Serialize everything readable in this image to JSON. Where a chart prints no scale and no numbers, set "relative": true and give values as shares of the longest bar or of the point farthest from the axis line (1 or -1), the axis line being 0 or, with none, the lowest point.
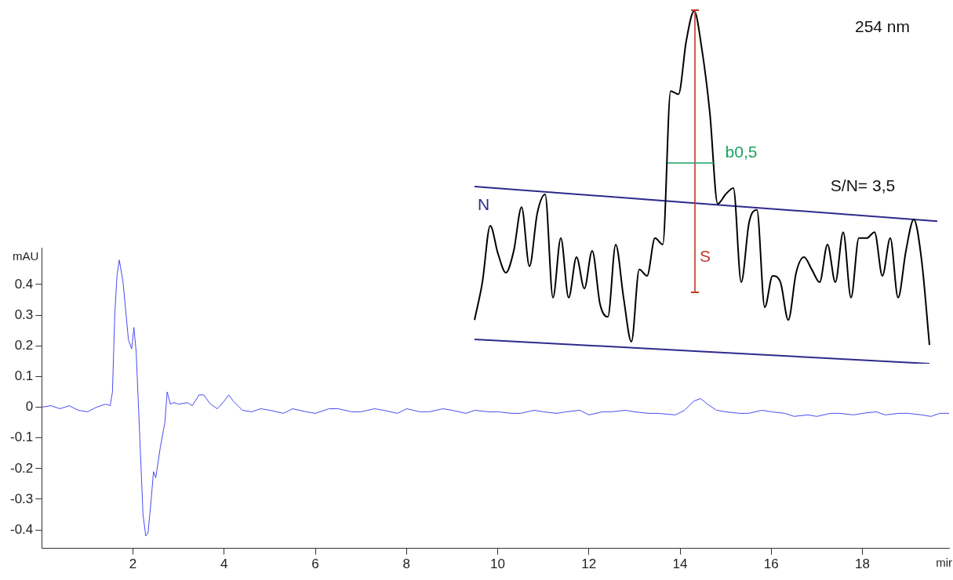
{
  "chart_data": [
    {
      "type": "line",
      "xlabel": "mir",
      "ylabel": "mAU",
      "xlim": [
        0,
        19.9
      ],
      "ylim": [
        -0.46,
        0.52
      ],
      "xticks": [
        2,
        4,
        6,
        8,
        10,
        12,
        14,
        16,
        18
      ],
      "yticks": [
        -0.4,
        -0.3,
        -0.2,
        -0.1,
        0,
        0.1,
        0.2,
        0.3,
        0.4
      ],
      "series": [
        {
          "color": "#4a4af0",
          "x": [
            0,
            0.2,
            0.4,
            0.6,
            0.8,
            1.0,
            1.2,
            1.4,
            1.5,
            1.55,
            1.6,
            1.65,
            1.7,
            1.78,
            1.85,
            1.9,
            1.97,
            2.02,
            2.07,
            2.15,
            2.22,
            2.28,
            2.33,
            2.4,
            2.45,
            2.5,
            2.6,
            2.7,
            2.75,
            2.82,
            2.9,
            3.0,
            3.2,
            3.3,
            3.45,
            3.55,
            3.7,
            3.85,
            4.0,
            4.1,
            4.2,
            4.4,
            4.6,
            4.8,
            5.0,
            5.3,
            5.5,
            5.8,
            6.0,
            6.3,
            6.5,
            6.8,
            7.0,
            7.3,
            7.5,
            7.8,
            8.0,
            8.3,
            8.5,
            8.8,
            9.0,
            9.3,
            9.5,
            9.8,
            10.0,
            10.3,
            10.5,
            10.8,
            11.0,
            11.3,
            11.5,
            11.8,
            12.0,
            12.3,
            12.5,
            12.8,
            13.0,
            13.3,
            13.5,
            13.9,
            14.1,
            14.3,
            14.45,
            14.6,
            14.8,
            15.0,
            15.3,
            15.5,
            15.8,
            16.0,
            16.3,
            16.5,
            16.8,
            17.0,
            17.3,
            17.5,
            17.8,
            18.0,
            18.3,
            18.5,
            18.8,
            19.0,
            19.3,
            19.5,
            19.7,
            19.9
          ],
          "values": [
            0,
            0.005,
            -0.005,
            0.005,
            -0.01,
            -0.015,
            0.0,
            0.01,
            0.005,
            0.05,
            0.3,
            0.43,
            0.48,
            0.41,
            0.3,
            0.22,
            0.19,
            0.26,
            0.18,
            -0.1,
            -0.35,
            -0.42,
            -0.41,
            -0.3,
            -0.21,
            -0.23,
            -0.13,
            -0.05,
            0.05,
            0.01,
            0.015,
            0.01,
            0.015,
            0.005,
            0.04,
            0.04,
            0.01,
            -0.005,
            0.02,
            0.04,
            0.02,
            -0.01,
            -0.015,
            -0.005,
            -0.01,
            -0.02,
            -0.005,
            -0.015,
            -0.02,
            -0.005,
            -0.005,
            -0.015,
            -0.015,
            -0.005,
            -0.01,
            -0.02,
            -0.005,
            -0.015,
            -0.015,
            -0.005,
            -0.01,
            -0.02,
            -0.01,
            -0.015,
            -0.015,
            -0.02,
            -0.02,
            -0.01,
            -0.015,
            -0.02,
            -0.015,
            -0.01,
            -0.025,
            -0.015,
            -0.015,
            -0.01,
            -0.015,
            -0.02,
            -0.02,
            -0.025,
            -0.01,
            0.02,
            0.028,
            0.01,
            -0.01,
            -0.015,
            -0.02,
            -0.02,
            -0.01,
            -0.015,
            -0.02,
            -0.03,
            -0.025,
            -0.03,
            -0.02,
            -0.02,
            -0.025,
            -0.02,
            -0.015,
            -0.025,
            -0.02,
            -0.02,
            -0.025,
            -0.03,
            -0.02,
            -0.02
          ]
        }
      ]
    },
    {
      "type": "line",
      "relative": true,
      "tick_labels": false,
      "categories": [
        null,
        null,
        null,
        null,
        null,
        null,
        null,
        null,
        null,
        null,
        null,
        null,
        null,
        null,
        null,
        null,
        null,
        null,
        null,
        null,
        null,
        null,
        null,
        null,
        null,
        null,
        null,
        null,
        null,
        null,
        null,
        null,
        null,
        null,
        null,
        null,
        null,
        null,
        null,
        null,
        null,
        null,
        null,
        null,
        null,
        null,
        null,
        null,
        null,
        null,
        null,
        null,
        null,
        null,
        null,
        null,
        null,
        null,
        null,
        null
      ],
      "annotations": [
        "254 nm",
        "S/N= 3,5",
        "S",
        "b0,5"
      ],
      "series": [
        {
          "color": "#000000",
          "values": [
            0.124,
            0.231,
            0.391,
            0.311,
            0.258,
            0.32,
            0.444,
            0.276,
            0.427,
            0.48,
            0.187,
            0.356,
            0.187,
            0.302,
            0.213,
            0.32,
            0.169,
            0.133,
            0.338,
            0.187,
            0.062,
            0.267,
            0.249,
            0.356,
            0.338,
            0.773,
            0.764,
            0.916,
            1.0,
            0.889,
            0.711,
            0.453,
            0.48,
            0.498,
            0.231,
            0.4,
            0.436,
            0.16,
            0.249,
            0.231,
            0.124,
            0.258,
            0.302,
            0.267,
            0.231,
            0.338,
            0.231,
            0.373,
            0.187,
            0.356,
            0.356,
            0.373,
            0.249,
            0.356,
            0.187,
            0.32,
            0.409,
            0.293,
            0.053,
            null
          ]
        },
        {
          "name": "N",
          "color": "#2e2a8c",
          "values": [
            0.502,
            null,
            null,
            null,
            null,
            null,
            null,
            null,
            null,
            null,
            null,
            null,
            null,
            null,
            null,
            null,
            null,
            null,
            null,
            null,
            null,
            null,
            null,
            null,
            null,
            null,
            null,
            null,
            null,
            null,
            null,
            null,
            null,
            null,
            null,
            null,
            null,
            null,
            null,
            null,
            null,
            null,
            null,
            null,
            null,
            null,
            null,
            null,
            null,
            null,
            null,
            null,
            null,
            null,
            null,
            null,
            null,
            null,
            null,
            0.404
          ]
        },
        {
          "color": "#2e2a8c",
          "values": [
            0.069,
            null,
            null,
            null,
            null,
            null,
            null,
            null,
            null,
            null,
            null,
            null,
            null,
            null,
            null,
            null,
            null,
            null,
            null,
            null,
            null,
            null,
            null,
            null,
            null,
            null,
            null,
            null,
            null,
            null,
            null,
            null,
            null,
            null,
            null,
            null,
            null,
            null,
            null,
            null,
            null,
            null,
            null,
            null,
            null,
            null,
            null,
            null,
            null,
            null,
            null,
            null,
            null,
            null,
            null,
            null,
            null,
            null,
            0.0,
            null
          ]
        }
      ]
    }
  ]
}
